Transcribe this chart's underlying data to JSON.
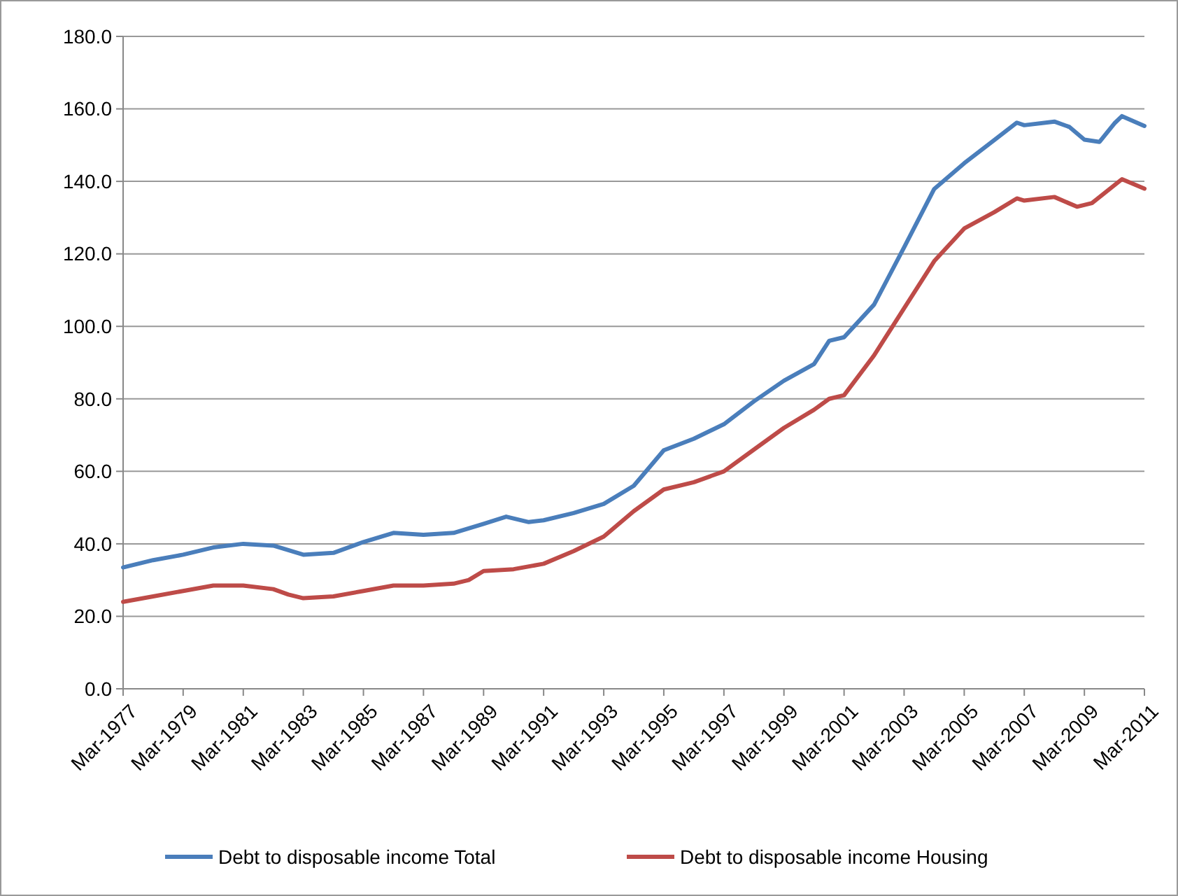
{
  "chart_data": {
    "type": "line",
    "xlim": [
      "1977-03",
      "2011-03"
    ],
    "ylim": [
      0,
      180
    ],
    "yticks": [
      {
        "value": 0,
        "label": "0.0"
      },
      {
        "value": 20,
        "label": "20.0"
      },
      {
        "value": 40,
        "label": "40.0"
      },
      {
        "value": 60,
        "label": "60.0"
      },
      {
        "value": 80,
        "label": "80.0"
      },
      {
        "value": 100,
        "label": "100.0"
      },
      {
        "value": 120,
        "label": "120.0"
      },
      {
        "value": 140,
        "label": "140.0"
      },
      {
        "value": 160,
        "label": "160.0"
      },
      {
        "value": 180,
        "label": "180.0"
      }
    ],
    "xticks": [
      {
        "value": "1977-03",
        "label": "Mar-1977"
      },
      {
        "value": "1979-03",
        "label": "Mar-1979"
      },
      {
        "value": "1981-03",
        "label": "Mar-1981"
      },
      {
        "value": "1983-03",
        "label": "Mar-1983"
      },
      {
        "value": "1985-03",
        "label": "Mar-1985"
      },
      {
        "value": "1987-03",
        "label": "Mar-1987"
      },
      {
        "value": "1989-03",
        "label": "Mar-1989"
      },
      {
        "value": "1991-03",
        "label": "Mar-1991"
      },
      {
        "value": "1993-03",
        "label": "Mar-1993"
      },
      {
        "value": "1995-03",
        "label": "Mar-1995"
      },
      {
        "value": "1997-03",
        "label": "Mar-1997"
      },
      {
        "value": "1999-03",
        "label": "Mar-1999"
      },
      {
        "value": "2001-03",
        "label": "Mar-2001"
      },
      {
        "value": "2003-03",
        "label": "Mar-2003"
      },
      {
        "value": "2005-03",
        "label": "Mar-2005"
      },
      {
        "value": "2007-03",
        "label": "Mar-2007"
      },
      {
        "value": "2009-03",
        "label": "Mar-2009"
      },
      {
        "value": "2011-03",
        "label": "Mar-2011"
      }
    ],
    "grid": "y",
    "legend": "bottom",
    "marker": "none",
    "line_style": "solid",
    "series": [
      {
        "name": "Debt to disposable income Total",
        "color": "#4a7ebb",
        "x": [
          "1977-03",
          "1978-03",
          "1979-03",
          "1980-03",
          "1981-03",
          "1982-03",
          "1983-03",
          "1984-03",
          "1985-03",
          "1986-03",
          "1987-03",
          "1988-03",
          "1989-03",
          "1989-12",
          "1990-09",
          "1991-03",
          "1992-03",
          "1993-03",
          "1994-03",
          "1995-03",
          "1996-03",
          "1997-03",
          "1998-03",
          "1999-03",
          "2000-03",
          "2000-09",
          "2001-03",
          "2002-03",
          "2003-03",
          "2004-03",
          "2005-03",
          "2006-03",
          "2006-12",
          "2007-03",
          "2008-03",
          "2008-09",
          "2009-03",
          "2009-09",
          "2010-03",
          "2010-06",
          "2011-03"
        ],
        "values": [
          33.5,
          35.5,
          37,
          39,
          40,
          39.5,
          37,
          37.5,
          40.5,
          43,
          42.5,
          43,
          45.5,
          47.5,
          46,
          46.5,
          48.5,
          51,
          56,
          65.8,
          69,
          73,
          79.3,
          85,
          89.6,
          96,
          97,
          106,
          121.8,
          137.9,
          145,
          151.4,
          156.2,
          155.5,
          156.5,
          155,
          151.5,
          150.9,
          156,
          158,
          155.3
        ]
      },
      {
        "name": "Debt to disposable income Housing",
        "color": "#be4b48",
        "x": [
          "1977-03",
          "1978-03",
          "1979-03",
          "1980-03",
          "1981-03",
          "1982-03",
          "1982-09",
          "1983-03",
          "1984-03",
          "1985-03",
          "1986-03",
          "1987-03",
          "1988-03",
          "1988-09",
          "1989-03",
          "1990-03",
          "1991-03",
          "1992-03",
          "1993-03",
          "1994-03",
          "1995-03",
          "1996-03",
          "1997-03",
          "1998-03",
          "1999-03",
          "2000-03",
          "2000-09",
          "2001-03",
          "2002-03",
          "2003-03",
          "2004-03",
          "2005-03",
          "2006-03",
          "2006-12",
          "2007-03",
          "2008-03",
          "2008-12",
          "2009-06",
          "2010-06",
          "2011-03"
        ],
        "values": [
          24,
          25.5,
          27,
          28.5,
          28.5,
          27.5,
          26,
          25,
          25.5,
          27,
          28.5,
          28.5,
          29,
          30,
          32.5,
          33,
          34.5,
          38,
          42,
          49,
          55,
          57,
          60,
          66,
          72,
          77,
          80,
          81,
          92,
          105,
          118,
          127,
          131.5,
          135.3,
          134.7,
          135.7,
          133,
          134,
          140.6,
          138
        ]
      }
    ]
  }
}
